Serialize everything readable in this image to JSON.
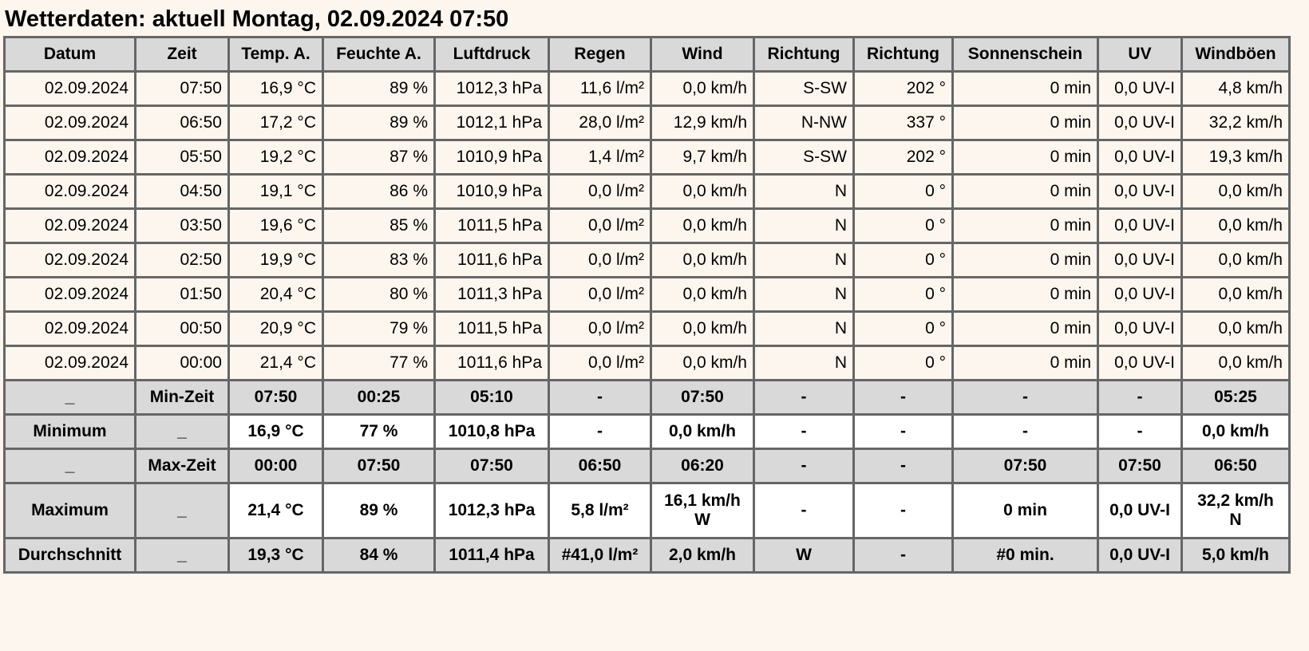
{
  "title": "Wetterdaten: aktuell Montag, 02.09.2024 07:50",
  "columns": [
    "Datum",
    "Zeit",
    "Temp. A.",
    "Feuchte A.",
    "Luftdruck",
    "Regen",
    "Wind",
    "Richtung",
    "Richtung",
    "Sonnenschein",
    "UV",
    "Windböen"
  ],
  "rows": [
    [
      "02.09.2024",
      "07:50",
      "16,9 °C",
      "89 %",
      "1012,3 hPa",
      "11,6 l/m²",
      "0,0 km/h",
      "S-SW",
      "202 °",
      "0 min",
      "0,0 UV-I",
      "4,8 km/h"
    ],
    [
      "02.09.2024",
      "06:50",
      "17,2 °C",
      "89 %",
      "1012,1 hPa",
      "28,0 l/m²",
      "12,9 km/h",
      "N-NW",
      "337 °",
      "0 min",
      "0,0 UV-I",
      "32,2 km/h"
    ],
    [
      "02.09.2024",
      "05:50",
      "19,2 °C",
      "87 %",
      "1010,9 hPa",
      "1,4 l/m²",
      "9,7 km/h",
      "S-SW",
      "202 °",
      "0 min",
      "0,0 UV-I",
      "19,3 km/h"
    ],
    [
      "02.09.2024",
      "04:50",
      "19,1 °C",
      "86 %",
      "1010,9 hPa",
      "0,0 l/m²",
      "0,0 km/h",
      "N",
      "0 °",
      "0 min",
      "0,0 UV-I",
      "0,0 km/h"
    ],
    [
      "02.09.2024",
      "03:50",
      "19,6 °C",
      "85 %",
      "1011,5 hPa",
      "0,0 l/m²",
      "0,0 km/h",
      "N",
      "0 °",
      "0 min",
      "0,0 UV-I",
      "0,0 km/h"
    ],
    [
      "02.09.2024",
      "02:50",
      "19,9 °C",
      "83 %",
      "1011,6 hPa",
      "0,0 l/m²",
      "0,0 km/h",
      "N",
      "0 °",
      "0 min",
      "0,0 UV-I",
      "0,0 km/h"
    ],
    [
      "02.09.2024",
      "01:50",
      "20,4 °C",
      "80 %",
      "1011,3 hPa",
      "0,0 l/m²",
      "0,0 km/h",
      "N",
      "0 °",
      "0 min",
      "0,0 UV-I",
      "0,0 km/h"
    ],
    [
      "02.09.2024",
      "00:50",
      "20,9 °C",
      "79 %",
      "1011,5 hPa",
      "0,0 l/m²",
      "0,0 km/h",
      "N",
      "0 °",
      "0 min",
      "0,0 UV-I",
      "0,0 km/h"
    ],
    [
      "02.09.2024",
      "00:00",
      "21,4 °C",
      "77 %",
      "1011,6 hPa",
      "0,0 l/m²",
      "0,0 km/h",
      "N",
      "0 °",
      "0 min",
      "0,0 UV-I",
      "0,0 km/h"
    ]
  ],
  "summary": [
    {
      "key": "min-zeit",
      "cells": [
        "_",
        "Min-Zeit",
        "07:50",
        "00:25",
        "05:10",
        "-",
        "07:50",
        "-",
        "-",
        "-",
        "-",
        "05:25"
      ]
    },
    {
      "key": "minimum",
      "cells": [
        "Minimum",
        "_",
        "16,9 °C",
        "77 %",
        "1010,8 hPa",
        "-",
        "0,0 km/h",
        "-",
        "-",
        "-",
        "-",
        "0,0 km/h"
      ]
    },
    {
      "key": "max-zeit",
      "cells": [
        "_",
        "Max-Zeit",
        "00:00",
        "07:50",
        "07:50",
        "06:50",
        "06:20",
        "-",
        "-",
        "07:50",
        "07:50",
        "06:50"
      ]
    },
    {
      "key": "maximum",
      "cells": [
        "Maximum",
        "_",
        "21,4 °C",
        "89 %",
        "1012,3 hPa",
        "5,8 l/m²",
        "16,1 km/h\nW",
        "-",
        "-",
        "0 min",
        "0,0 UV-I",
        "32,2 km/h\nN"
      ]
    },
    {
      "key": "durchschnitt",
      "cells": [
        "Durchschnitt",
        "_",
        "19,3 °C",
        "84 %",
        "1011,4 hPa",
        "#41,0 l/m²",
        "2,0 km/h",
        "W",
        "-",
        "#0 min.",
        "0,0 UV-I",
        "5,0 km/h"
      ]
    }
  ],
  "colors": {
    "background": "#fdf6ee",
    "header": "#d9d9d9",
    "border": "#666666",
    "highlight": "#ffffff"
  }
}
